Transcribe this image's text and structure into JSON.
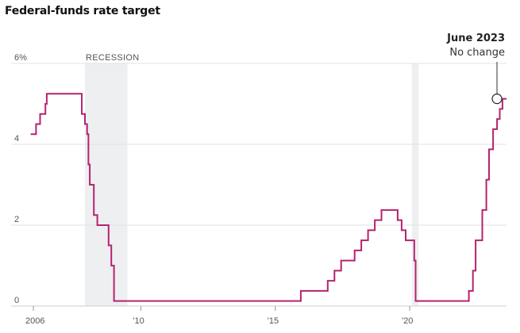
{
  "chart_data": {
    "type": "line",
    "title": "Federal-funds rate target",
    "ylim": [
      0,
      6
    ],
    "y_ticks": [
      {
        "value": 0,
        "label": "0"
      },
      {
        "value": 2,
        "label": "2"
      },
      {
        "value": 4,
        "label": "4"
      },
      {
        "value": 6,
        "label": "6%"
      }
    ],
    "x_ticks": [
      {
        "value": 2006,
        "label": "2006"
      },
      {
        "value": 2010,
        "label": "'10"
      },
      {
        "value": 2015,
        "label": "'15"
      },
      {
        "value": 2020,
        "label": "'20"
      }
    ],
    "grid": true,
    "recessions": [
      {
        "start": 2007.92,
        "end": 2009.5,
        "label": "RECESSION"
      },
      {
        "start": 2020.08,
        "end": 2020.33,
        "label": ""
      }
    ],
    "line_color": "#b5236f",
    "series": [
      {
        "step": true,
        "points": [
          [
            2005.9,
            4.25
          ],
          [
            2006.1,
            4.5
          ],
          [
            2006.25,
            4.75
          ],
          [
            2006.45,
            5.0
          ],
          [
            2006.5,
            5.25
          ],
          [
            2007.7,
            5.25
          ],
          [
            2007.8,
            4.75
          ],
          [
            2007.92,
            4.5
          ],
          [
            2008.0,
            4.25
          ],
          [
            2008.05,
            3.5
          ],
          [
            2008.1,
            3.0
          ],
          [
            2008.25,
            2.25
          ],
          [
            2008.38,
            2.0
          ],
          [
            2008.8,
            1.5
          ],
          [
            2008.9,
            1.0
          ],
          [
            2009.0,
            0.125
          ],
          [
            2015.95,
            0.375
          ],
          [
            2016.95,
            0.625
          ],
          [
            2017.2,
            0.875
          ],
          [
            2017.45,
            1.125
          ],
          [
            2017.95,
            1.375
          ],
          [
            2018.2,
            1.625
          ],
          [
            2018.45,
            1.875
          ],
          [
            2018.7,
            2.125
          ],
          [
            2018.95,
            2.375
          ],
          [
            2019.55,
            2.125
          ],
          [
            2019.7,
            1.875
          ],
          [
            2019.85,
            1.625
          ],
          [
            2020.17,
            1.125
          ],
          [
            2020.22,
            0.125
          ],
          [
            2022.2,
            0.375
          ],
          [
            2022.35,
            0.875
          ],
          [
            2022.45,
            1.625
          ],
          [
            2022.7,
            2.375
          ],
          [
            2022.85,
            3.125
          ],
          [
            2022.95,
            3.875
          ],
          [
            2023.1,
            4.375
          ],
          [
            2023.25,
            4.625
          ],
          [
            2023.35,
            4.875
          ],
          [
            2023.45,
            5.125
          ],
          [
            2023.6,
            5.125
          ]
        ]
      }
    ],
    "annotation": {
      "x": 2023.6,
      "y": 5.125,
      "title": "June 2023",
      "subtitle": "No change"
    }
  }
}
